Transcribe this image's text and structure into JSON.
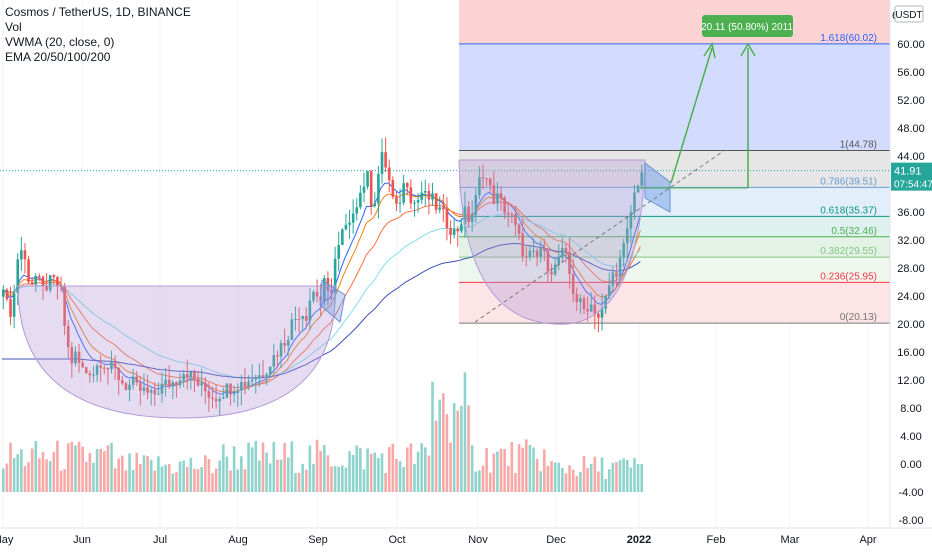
{
  "legend": {
    "title": "Cosmos / TetherUS, 1D, BINANCE",
    "vol": "Vol",
    "vwma": "VWMA (20, close, 0)",
    "ema": "EMA 20/50/100/200"
  },
  "price_axis": {
    "currency": "USDT",
    "top_partial": "6",
    "last_price": "41.91",
    "countdown": "07:54:47"
  },
  "target_label": "20.11 (50.80%) 2011",
  "fib_levels": [
    {
      "ratio": "1.618",
      "price": 60.02,
      "text": "1.618(60.02)",
      "color": "#2962ff",
      "fill": "#d3dcff"
    },
    {
      "ratio": "1",
      "price": 44.78,
      "text": "1(44.78)",
      "color": "#555555",
      "fill": "#e6e6e6"
    },
    {
      "ratio": "0.786",
      "price": 39.51,
      "text": "0.786(39.51)",
      "color": "#6a9fd8",
      "fill": "#e3eefb"
    },
    {
      "ratio": "0.618",
      "price": 35.37,
      "text": "0.618(35.37)",
      "color": "#089981",
      "fill": "#dff1ee"
    },
    {
      "ratio": "0.5",
      "price": 32.46,
      "text": "0.5(32.46)",
      "color": "#4caf50",
      "fill": "#e3f2e4"
    },
    {
      "ratio": "0.382",
      "price": 29.55,
      "text": "0.382(29.55)",
      "color": "#81c784",
      "fill": "#eef7ee"
    },
    {
      "ratio": "0.236",
      "price": 25.95,
      "text": "0.236(25.95)",
      "color": "#f23645",
      "fill": "#fde4e6"
    },
    {
      "ratio": "0",
      "price": 20.13,
      "text": "0(20.13)",
      "color": "#777777",
      "fill": ""
    }
  ],
  "colors": {
    "up": "#26a69a",
    "down": "#ef5350",
    "vol_up": "#8fd4cc",
    "vol_down": "#f7a9a7",
    "vwma": "#2962ff",
    "ema20": "#f57f17",
    "ema50": "#ff7043",
    "ema100": "#80deea",
    "ema200": "#3f51b5",
    "cup": "#b59ad8",
    "arrow": "#4caf50"
  },
  "chart_data": {
    "type": "candlestick",
    "title": "Cosmos / TetherUS, 1D, BINANCE",
    "x_ticks": [
      "May",
      "Jun",
      "Jul",
      "Aug",
      "Sep",
      "Oct",
      "Nov",
      "Dec",
      "2022",
      "Feb",
      "Mar",
      "Apr"
    ],
    "y_ticks": [
      "60.00",
      "56.00",
      "52.00",
      "48.00",
      "44.00",
      "40.00",
      "36.00",
      "32.00",
      "28.00",
      "24.00",
      "20.00",
      "16.00",
      "12.00",
      "8.00",
      "4.00",
      "0.00",
      "-4.00",
      "-8.00"
    ],
    "ylim": [
      -8,
      66
    ],
    "last_price": 41.91,
    "closes": [
      26.0,
      21.5,
      22.5,
      29.5,
      31.0,
      27.0,
      26.0,
      27.0,
      24.5,
      25.5,
      26.0,
      26.0,
      24.5,
      18.5,
      14.5,
      15.5,
      14.0,
      13.0,
      13.5,
      13.0,
      15.0,
      14.5,
      13.5,
      13.5,
      12.5,
      11.5,
      11.0,
      11.5,
      10.5,
      10.5,
      10.0,
      9.5,
      10.5,
      11.0,
      11.5,
      11.5,
      12.0,
      13.0,
      13.5,
      12.5,
      12.0,
      11.0,
      10.5,
      10.0,
      9.5,
      10.0,
      10.5,
      11.0,
      11.0,
      11.5,
      11.5,
      12.0,
      12.5,
      12.5,
      13.0,
      14.0,
      15.0,
      16.0,
      17.0,
      18.0,
      20.0,
      21.0,
      22.0,
      21.0,
      24.0,
      25.0,
      23.0,
      26.0,
      23.0,
      29.0,
      31.0,
      34.0,
      33.0,
      37.0,
      38.0,
      40.0,
      41.0,
      36.0,
      41.0,
      44.0,
      42.0,
      38.0,
      36.0,
      39.0,
      41.0,
      38.0,
      37.0,
      39.0,
      38.0,
      38.0,
      37.0,
      36.0,
      35.0,
      34.0,
      33.0,
      34.0,
      36.0,
      35.0,
      36.0,
      40.0,
      42.0,
      40.0,
      38.0,
      38.0,
      37.0,
      36.0,
      35.0,
      33.0,
      31.0,
      29.0,
      30.0,
      29.0,
      31.0,
      29.0,
      28.0,
      28.0,
      30.0,
      30.0,
      27.0,
      24.0,
      23.0,
      22.0,
      23.0,
      22.5,
      21.0,
      22.0,
      25.0,
      27.0,
      28.0,
      30.0,
      33.0,
      37.0,
      40.0,
      41.9
    ]
  }
}
